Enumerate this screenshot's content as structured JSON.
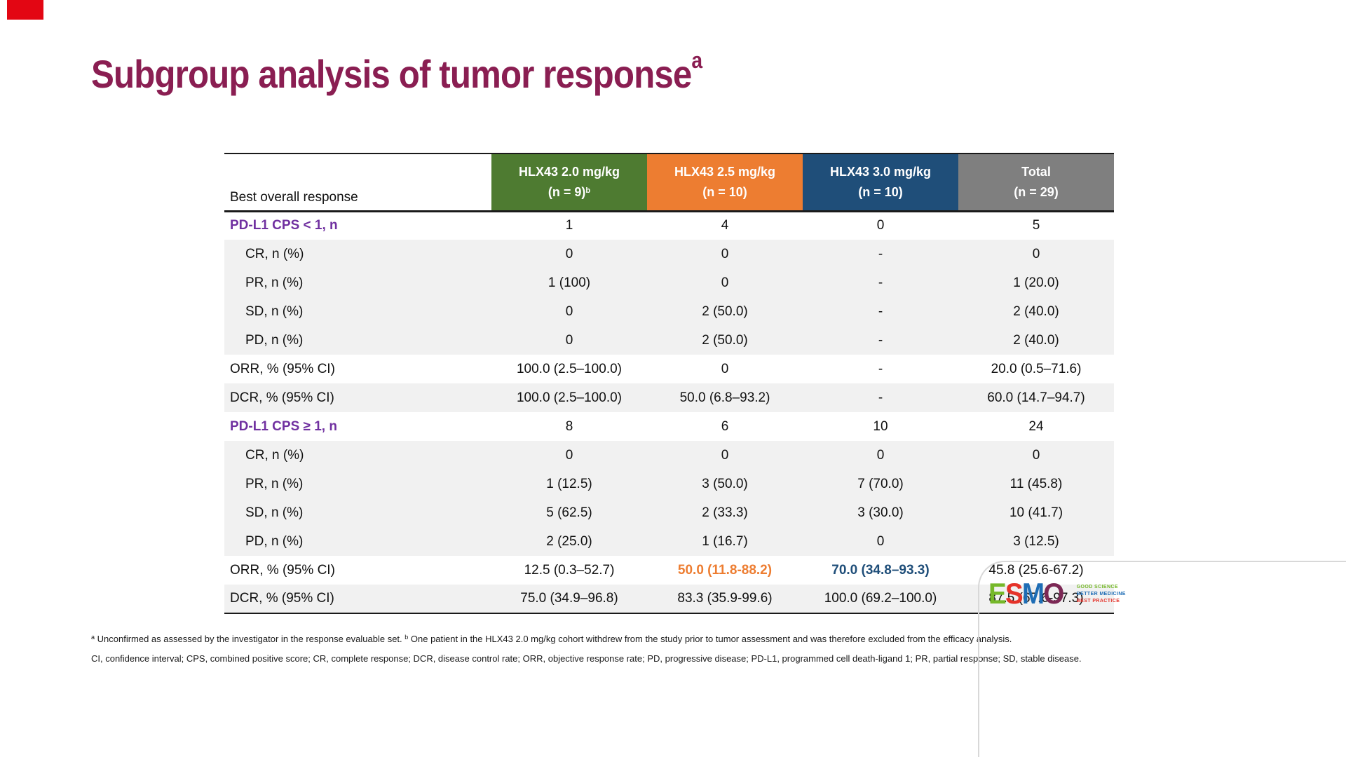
{
  "slide": {
    "title": {
      "text": "Subgroup analysis of tumor response",
      "superscript": "a"
    },
    "title_color": "#8A1E52",
    "corner_mark_color": "#E30613"
  },
  "table": {
    "row_header_label": "Best overall response",
    "columns": [
      {
        "name": "HLX43 2.0 mg/kg",
        "n_label": "(n = 9)",
        "n_superscript": "b",
        "header_color": "#4E7B31"
      },
      {
        "name": "HLX43 2.5 mg/kg",
        "n_label": "(n = 10)",
        "n_superscript": "",
        "header_color": "#ED7D31"
      },
      {
        "name": "HLX43 3.0 mg/kg",
        "n_label": "(n = 10)",
        "n_superscript": "",
        "header_color": "#1F4E79"
      },
      {
        "name": "Total",
        "n_label": "(n = 29)",
        "n_superscript": "",
        "header_color": "#7F7F7F"
      }
    ],
    "section_label_color": "#7030A0",
    "band_gray_color": "#F1F1F1",
    "rows": [
      {
        "label": "PD-L1 CPS < 1, n",
        "style": "section",
        "band": "white",
        "values": [
          "1",
          "4",
          "0",
          "5"
        ]
      },
      {
        "label": "CR, n (%)",
        "style": "sub",
        "band": "gray",
        "values": [
          "0",
          "0",
          "-",
          "0"
        ]
      },
      {
        "label": "PR, n (%)",
        "style": "sub",
        "band": "gray",
        "values": [
          "1 (100)",
          "0",
          "-",
          "1 (20.0)"
        ]
      },
      {
        "label": "SD, n (%)",
        "style": "sub",
        "band": "gray",
        "values": [
          "0",
          "2 (50.0)",
          "-",
          "2 (40.0)"
        ]
      },
      {
        "label": "PD, n (%)",
        "style": "sub",
        "band": "gray",
        "values": [
          "0",
          "2 (50.0)",
          "-",
          "2 (40.0)"
        ]
      },
      {
        "label": "ORR, % (95% CI)",
        "style": "stat",
        "band": "white",
        "values": [
          "100.0 (2.5–100.0)",
          "0",
          "-",
          "20.0 (0.5–71.6)"
        ]
      },
      {
        "label": "DCR, % (95% CI)",
        "style": "stat",
        "band": "gray",
        "values": [
          "100.0 (2.5–100.0)",
          "50.0 (6.8–93.2)",
          "-",
          "60.0 (14.7–94.7)"
        ]
      },
      {
        "label": "PD-L1 CPS ≥ 1, n",
        "style": "section",
        "band": "white",
        "values": [
          "8",
          "6",
          "10",
          "24"
        ]
      },
      {
        "label": "CR, n (%)",
        "style": "sub",
        "band": "gray",
        "values": [
          "0",
          "0",
          "0",
          "0"
        ]
      },
      {
        "label": "PR, n (%)",
        "style": "sub",
        "band": "gray",
        "values": [
          "1 (12.5)",
          "3 (50.0)",
          "7 (70.0)",
          "11 (45.8)"
        ]
      },
      {
        "label": "SD, n (%)",
        "style": "sub",
        "band": "gray",
        "values": [
          "5 (62.5)",
          "2 (33.3)",
          "3 (30.0)",
          "10 (41.7)"
        ]
      },
      {
        "label": "PD, n (%)",
        "style": "sub",
        "band": "gray",
        "values": [
          "2 (25.0)",
          "1 (16.7)",
          "0",
          "3 (12.5)"
        ]
      },
      {
        "label": "ORR, % (95% CI)",
        "style": "stat",
        "band": "white",
        "values": [
          "12.5 (0.3–52.7)",
          "50.0 (11.8-88.2)",
          "70.0 (34.8–93.3)",
          "45.8 (25.6-67.2)"
        ],
        "value_colors": {
          "1": "#ED7D31",
          "2": "#1F4E79"
        }
      },
      {
        "label": "DCR, % (95% CI)",
        "style": "stat",
        "band": "gray",
        "values": [
          "75.0 (34.9–96.8)",
          "83.3 (35.9-99.6)",
          "100.0 (69.2–100.0)",
          "87.5 (67.6-97.3)"
        ]
      }
    ]
  },
  "footnotes": {
    "line1": [
      {
        "sup": "a",
        "text": " Unconfirmed as assessed by the investigator in the response evaluable set. "
      },
      {
        "sup": "b",
        "text": " One patient in the HLX43 2.0 mg/kg cohort withdrew from the study prior to tumor assessment and was therefore excluded from the efficacy analysis."
      }
    ],
    "line2": "CI, confidence interval; CPS, combined positive score; CR, complete response; DCR, disease control rate; ORR, objective response rate; PD, progressive disease; PD-L1, programmed cell death-ligand 1; PR, partial response; SD, stable disease."
  },
  "logo": {
    "letters": [
      {
        "char": "E",
        "color": "#76B82A"
      },
      {
        "char": "S",
        "color": "#E5332A"
      },
      {
        "char": "M",
        "color": "#1E6DB5"
      },
      {
        "char": "O",
        "color": "#7C2855"
      }
    ],
    "tagline": [
      {
        "text": "GOOD SCIENCE",
        "color": "#76B82A"
      },
      {
        "text": "BETTER MEDICINE",
        "color": "#1E6DB5"
      },
      {
        "text": "BEST PRACTICE",
        "color": "#E5332A"
      }
    ]
  }
}
